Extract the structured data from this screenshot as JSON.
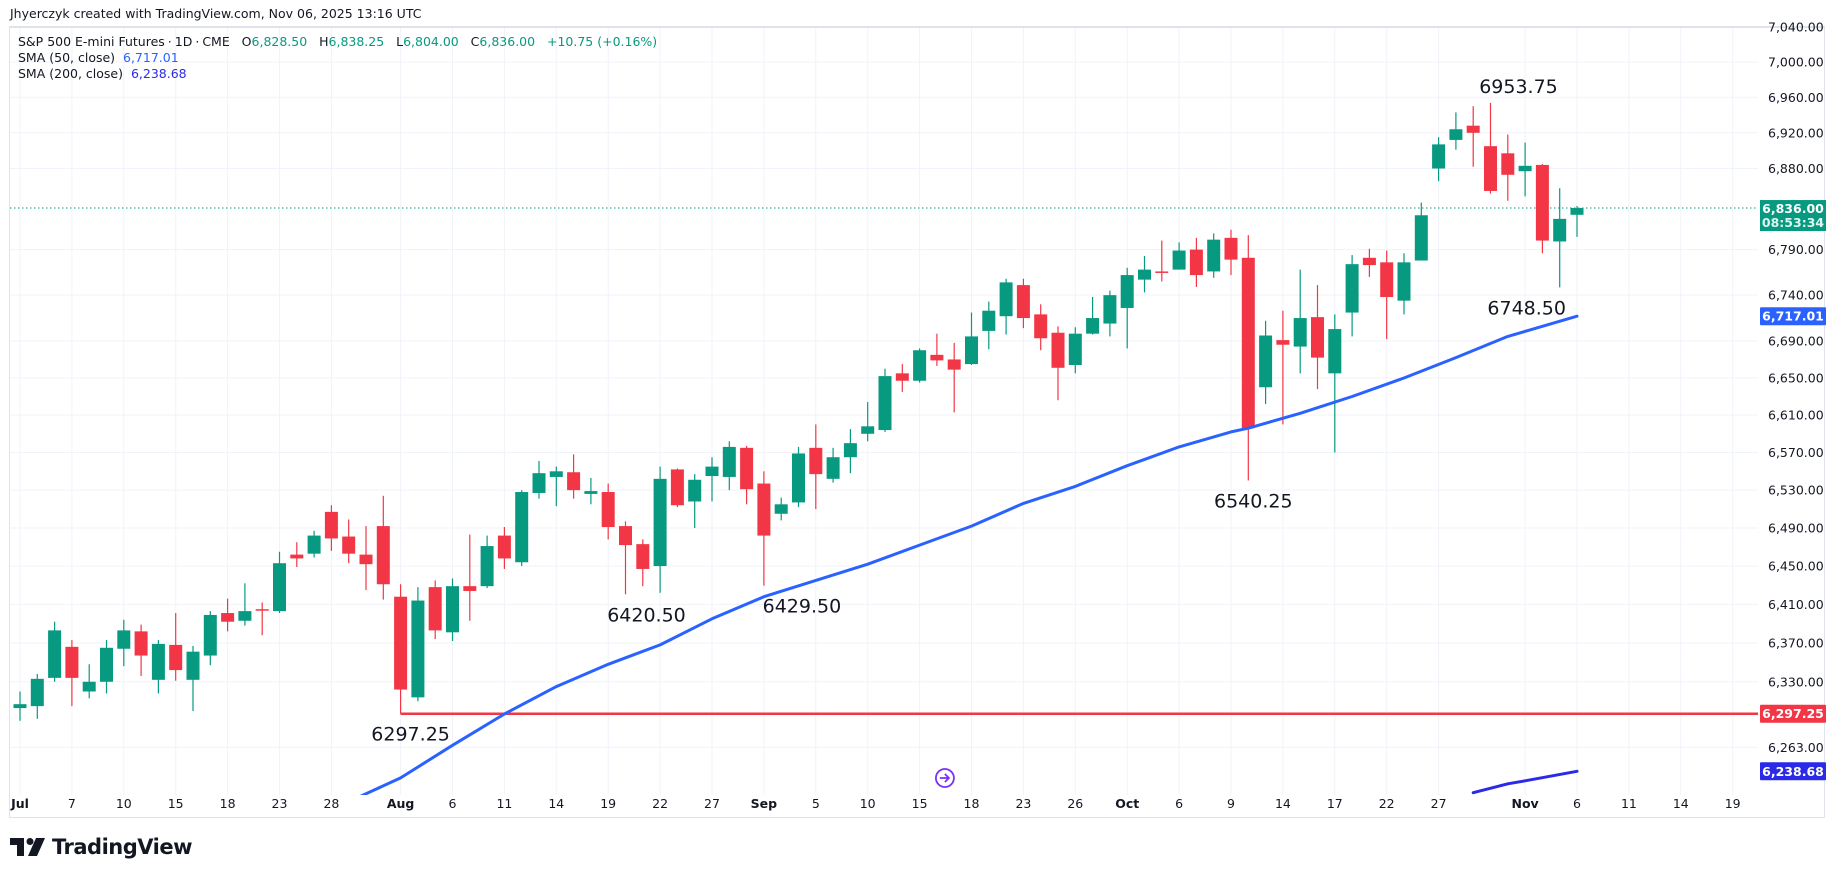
{
  "header": {
    "credit": "Jhyerczyk created with TradingView.com, Nov 06, 2025 13:16 UTC"
  },
  "legend": {
    "symbol": "S&P 500 E-mini Futures",
    "interval": "1D",
    "exchange": "CME",
    "o_label": "O",
    "o_value": "6,828.50",
    "h_label": "H",
    "h_value": "6,838.25",
    "l_label": "L",
    "l_value": "6,804.00",
    "c_label": "C",
    "c_value": "6,836.00",
    "change": "+10.75 (+0.16%)",
    "sma50_label": "SMA (50, close)",
    "sma50_value": "6,717.01",
    "sma200_label": "SMA (200, close)",
    "sma200_value": "6,238.68"
  },
  "logo": {
    "text": "TradingView"
  },
  "colors": {
    "up": "#089981",
    "down": "#f23645",
    "sma50": "#2962ff",
    "sma200": "#2a2ae8",
    "support_line": "#f23645",
    "grid": "#f0f3fa",
    "event_icon": "#7b2ff7"
  },
  "chart_data": {
    "type": "candlestick",
    "title": "S&P 500 E-mini Futures · 1D · CME",
    "y_scale": "log",
    "ylim": [
      6200,
      7045
    ],
    "grid": true,
    "y_ticks": [
      "7,040.00",
      "7,000.00",
      "6,960.00",
      "6,920.00",
      "6,880.00",
      "6,790.00",
      "6,740.00",
      "6,690.00",
      "6,650.00",
      "6,610.00",
      "6,570.00",
      "6,530.00",
      "6,490.00",
      "6,450.00",
      "6,410.00",
      "6,370.00",
      "6,330.00",
      "6,263.00"
    ],
    "x_ticks": [
      {
        "label": "Jul",
        "date": "Jul 1"
      },
      {
        "label": "7",
        "date": "Jul 7"
      },
      {
        "label": "10",
        "date": "Jul 10"
      },
      {
        "label": "15",
        "date": "Jul 15"
      },
      {
        "label": "18",
        "date": "Jul 18"
      },
      {
        "label": "23",
        "date": "Jul 23"
      },
      {
        "label": "28",
        "date": "Jul 28"
      },
      {
        "label": "Aug",
        "date": "Aug 1"
      },
      {
        "label": "6",
        "date": "Aug 6"
      },
      {
        "label": "11",
        "date": "Aug 11"
      },
      {
        "label": "14",
        "date": "Aug 14"
      },
      {
        "label": "19",
        "date": "Aug 19"
      },
      {
        "label": "22",
        "date": "Aug 22"
      },
      {
        "label": "27",
        "date": "Aug 27"
      },
      {
        "label": "Sep",
        "date": "Sep 2"
      },
      {
        "label": "5",
        "date": "Sep 5"
      },
      {
        "label": "10",
        "date": "Sep 10"
      },
      {
        "label": "15",
        "date": "Sep 15"
      },
      {
        "label": "18",
        "date": "Sep 18"
      },
      {
        "label": "23",
        "date": "Sep 23"
      },
      {
        "label": "26",
        "date": "Sep 26"
      },
      {
        "label": "Oct",
        "date": "Oct 1"
      },
      {
        "label": "6",
        "date": "Oct 6"
      },
      {
        "label": "9",
        "date": "Oct 9"
      },
      {
        "label": "14",
        "date": "Oct 14"
      },
      {
        "label": "17",
        "date": "Oct 17"
      },
      {
        "label": "22",
        "date": "Oct 22"
      },
      {
        "label": "27",
        "date": "Oct 27"
      },
      {
        "label": "Nov",
        "date": "Nov 3"
      },
      {
        "label": "6",
        "date": "Nov 6"
      },
      {
        "label": "11",
        "date": "Nov 11"
      },
      {
        "label": "14",
        "date": "Nov 14"
      },
      {
        "label": "19",
        "date": "Nov 19"
      }
    ],
    "candles_columns": [
      "date",
      "open",
      "high",
      "low",
      "close"
    ],
    "candles": [
      [
        "Jul 1",
        6303,
        6320,
        6290,
        6307
      ],
      [
        "Jul 2",
        6305,
        6338,
        6292,
        6333
      ],
      [
        "Jul 3",
        6334,
        6392,
        6330,
        6383
      ],
      [
        "Jul 7",
        6366,
        6373,
        6305,
        6334
      ],
      [
        "Jul 8",
        6320,
        6348,
        6313,
        6330
      ],
      [
        "Jul 9",
        6330,
        6373,
        6318,
        6365
      ],
      [
        "Jul 10",
        6364,
        6394,
        6346,
        6383
      ],
      [
        "Jul 11",
        6382,
        6389,
        6336,
        6357
      ],
      [
        "Jul 14",
        6332,
        6373,
        6318,
        6369
      ],
      [
        "Jul 15",
        6368,
        6401,
        6331,
        6342
      ],
      [
        "Jul 16",
        6332,
        6367,
        6300,
        6361
      ],
      [
        "Jul 17",
        6357,
        6403,
        6347,
        6399
      ],
      [
        "Jul 18",
        6401,
        6416,
        6382,
        6392
      ],
      [
        "Jul 21",
        6393,
        6432,
        6388,
        6403
      ],
      [
        "Jul 22",
        6405,
        6412,
        6378,
        6404
      ],
      [
        "Jul 23",
        6403,
        6465,
        6401,
        6453
      ],
      [
        "Jul 24",
        6462,
        6475,
        6449,
        6458
      ],
      [
        "Jul 25",
        6463,
        6487,
        6459,
        6482
      ],
      [
        "Jul 28",
        6507,
        6514,
        6466,
        6479
      ],
      [
        "Jul 29",
        6481,
        6499,
        6453,
        6463
      ],
      [
        "Jul 30",
        6462,
        6492,
        6425,
        6452
      ],
      [
        "Jul 31",
        6492,
        6524,
        6415,
        6431
      ],
      [
        "Aug 1",
        6418,
        6431,
        6297.25,
        6322
      ],
      [
        "Aug 4",
        6314,
        6428,
        6310,
        6414
      ],
      [
        "Aug 5",
        6428,
        6435,
        6374,
        6383
      ],
      [
        "Aug 6",
        6381,
        6437,
        6372,
        6429
      ],
      [
        "Aug 7",
        6429,
        6483,
        6393,
        6424
      ],
      [
        "Aug 8",
        6429,
        6482,
        6427,
        6471
      ],
      [
        "Aug 11",
        6482,
        6491,
        6447,
        6458
      ],
      [
        "Aug 12",
        6454,
        6530,
        6450,
        6528
      ],
      [
        "Aug 13",
        6527,
        6561,
        6521,
        6548
      ],
      [
        "Aug 14",
        6544,
        6555,
        6513,
        6550
      ],
      [
        "Aug 15",
        6549,
        6568,
        6521,
        6530
      ],
      [
        "Aug 18",
        6526,
        6543,
        6515,
        6529
      ],
      [
        "Aug 19",
        6528,
        6537,
        6478,
        6491
      ],
      [
        "Aug 20",
        6492,
        6497,
        6420.5,
        6472
      ],
      [
        "Aug 21",
        6473,
        6478,
        6429,
        6447
      ],
      [
        "Aug 22",
        6450,
        6555,
        6422,
        6542
      ],
      [
        "Aug 25",
        6552,
        6553,
        6512,
        6514
      ],
      [
        "Aug 26",
        6518,
        6547,
        6490,
        6541
      ],
      [
        "Aug 27",
        6545,
        6565,
        6518,
        6555
      ],
      [
        "Aug 28",
        6544,
        6582,
        6530,
        6576
      ],
      [
        "Aug 29",
        6575,
        6577,
        6515,
        6531
      ],
      [
        "Sep 2",
        6537,
        6550,
        6429.5,
        6482
      ],
      [
        "Sep 3",
        6505,
        6522,
        6498,
        6515
      ],
      [
        "Sep 4",
        6517,
        6576,
        6512,
        6569
      ],
      [
        "Sep 5",
        6575,
        6600,
        6510,
        6547
      ],
      [
        "Sep 8",
        6542,
        6575,
        6538,
        6565
      ],
      [
        "Sep 9",
        6565,
        6595,
        6548,
        6580
      ],
      [
        "Sep 10",
        6590,
        6624,
        6582,
        6598
      ],
      [
        "Sep 11",
        6594,
        6660,
        6592,
        6652
      ],
      [
        "Sep 12",
        6655,
        6665,
        6635,
        6647
      ],
      [
        "Sep 15",
        6647,
        6682,
        6645,
        6680
      ],
      [
        "Sep 16",
        6675,
        6698,
        6663,
        6669
      ],
      [
        "Sep 17",
        6670,
        6688,
        6613,
        6659
      ],
      [
        "Sep 18",
        6665,
        6721,
        6664,
        6695
      ],
      [
        "Sep 19",
        6701,
        6733,
        6681,
        6723
      ],
      [
        "Sep 22",
        6717,
        6758,
        6697,
        6754
      ],
      [
        "Sep 23",
        6751,
        6758,
        6704,
        6715
      ],
      [
        "Sep 24",
        6719,
        6730,
        6680,
        6693
      ],
      [
        "Sep 25",
        6699,
        6706,
        6626,
        6661
      ],
      [
        "Sep 26",
        6664,
        6705,
        6655,
        6698
      ],
      [
        "Sep 29",
        6698,
        6738,
        6697,
        6715
      ],
      [
        "Sep 30",
        6709,
        6745,
        6695,
        6740
      ],
      [
        "Oct 1",
        6726,
        6770,
        6682,
        6762
      ],
      [
        "Oct 2",
        6757,
        6783,
        6743,
        6768
      ],
      [
        "Oct 3",
        6766,
        6800,
        6755,
        6765
      ],
      [
        "Oct 6",
        6768,
        6798,
        6768,
        6789
      ],
      [
        "Oct 7",
        6790,
        6803,
        6749,
        6762
      ],
      [
        "Oct 8",
        6766,
        6808,
        6759,
        6801
      ],
      [
        "Oct 9",
        6803,
        6812,
        6762,
        6779
      ],
      [
        "Oct 10",
        6781,
        6806,
        6540.25,
        6596
      ],
      [
        "Oct 13",
        6640,
        6712,
        6622,
        6696
      ],
      [
        "Oct 14",
        6691,
        6723,
        6600,
        6686
      ],
      [
        "Oct 15",
        6684,
        6768,
        6655,
        6715
      ],
      [
        "Oct 16",
        6716,
        6751,
        6638,
        6672
      ],
      [
        "Oct 17",
        6655,
        6719,
        6570,
        6703
      ],
      [
        "Oct 20",
        6721,
        6784,
        6695,
        6774
      ],
      [
        "Oct 21",
        6781,
        6791,
        6760,
        6773
      ],
      [
        "Oct 22",
        6776,
        6789,
        6692,
        6738
      ],
      [
        "Oct 23",
        6734,
        6786,
        6719,
        6776
      ],
      [
        "Oct 24",
        6778,
        6842,
        6778,
        6828
      ],
      [
        "Oct 27",
        6880,
        6915,
        6866,
        6907
      ],
      [
        "Oct 28",
        6912,
        6943,
        6901,
        6924
      ],
      [
        "Oct 29",
        6928,
        6950,
        6882,
        6920
      ],
      [
        "Oct 30",
        6905,
        6953.75,
        6852,
        6855
      ],
      [
        "Oct 31",
        6897,
        6918,
        6844,
        6873
      ],
      [
        "Nov 3",
        6877,
        6909,
        6849,
        6883
      ],
      [
        "Nov 4",
        6884,
        6885,
        6786,
        6800
      ],
      [
        "Nov 5",
        6799,
        6858,
        6748.5,
        6824
      ],
      [
        "Nov 6",
        6828.5,
        6838.25,
        6804,
        6836
      ]
    ],
    "series": [
      {
        "name": "SMA (50, close)",
        "values": [
          [
            "Jul 28",
            6200
          ],
          [
            "Aug 1",
            6232
          ],
          [
            "Aug 6",
            6265
          ],
          [
            "Aug 11",
            6297
          ],
          [
            "Aug 14",
            6325
          ],
          [
            "Aug 19",
            6348
          ],
          [
            "Aug 22",
            6368
          ],
          [
            "Aug 27",
            6395
          ],
          [
            "Sep 2",
            6418
          ],
          [
            "Sep 5",
            6435
          ],
          [
            "Sep 10",
            6452
          ],
          [
            "Sep 15",
            6472
          ],
          [
            "Sep 18",
            6492
          ],
          [
            "Sep 23",
            6516
          ],
          [
            "Sep 26",
            6534
          ],
          [
            "Oct 1",
            6556
          ],
          [
            "Oct 6",
            6576
          ],
          [
            "Oct 9",
            6592
          ],
          [
            "Oct 10",
            6596
          ],
          [
            "Oct 15",
            6612
          ],
          [
            "Oct 20",
            6630
          ],
          [
            "Oct 23",
            6650
          ],
          [
            "Oct 28",
            6672
          ],
          [
            "Oct 31",
            6695
          ],
          [
            "Nov 4",
            6706
          ],
          [
            "Nov 6",
            6717.01
          ]
        ]
      },
      {
        "name": "SMA (200, close)",
        "values": [
          [
            "Oct 29",
            6217
          ],
          [
            "Oct 31",
            6226
          ],
          [
            "Nov 3",
            6229
          ],
          [
            "Nov 6",
            6238.68
          ]
        ]
      }
    ],
    "last_price": {
      "value": 6836.0,
      "label": "6,836.00",
      "countdown": "08:53:34"
    },
    "axis_badges": [
      {
        "label": "6,717.01",
        "value": 6717.01,
        "color": "#2962ff"
      },
      {
        "label": "6,297.25",
        "value": 6297.25,
        "color": "#f23645"
      },
      {
        "label": "6,238.68",
        "value": 6238.68,
        "color": "#2a2ae8"
      }
    ],
    "support_line": {
      "value": 6297.25,
      "from_date": "Aug 1"
    },
    "annotations": [
      {
        "text": "6953.75",
        "date": "Oct 30",
        "position": "above"
      },
      {
        "text": "6748.50",
        "date": "Nov 5",
        "position": "below"
      },
      {
        "text": "6540.25",
        "date": "Oct 10",
        "position": "below"
      },
      {
        "text": "6420.50",
        "date": "Aug 20",
        "position": "below"
      },
      {
        "text": "6429.50",
        "date": "Sep 2",
        "position": "below"
      },
      {
        "text": "6297.25",
        "date": "Aug 1",
        "position": "below"
      }
    ],
    "event_marker": {
      "date": "Sep 16",
      "icon": "fast-forward-circle-icon"
    }
  }
}
